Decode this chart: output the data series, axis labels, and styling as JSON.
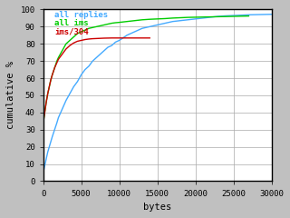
{
  "title": "",
  "xlabel": "bytes",
  "ylabel": "cumulative %",
  "xlim": [
    0,
    30000
  ],
  "ylim": [
    0,
    100
  ],
  "xticks": [
    0,
    5000,
    10000,
    15000,
    20000,
    25000,
    30000
  ],
  "yticks": [
    0,
    10,
    20,
    30,
    40,
    50,
    60,
    70,
    80,
    90,
    100
  ],
  "background_color": "#c8c8c8",
  "plot_bg_color": "#ffffff",
  "grid_color": "#aaaaaa",
  "lines": [
    {
      "label": "all replies",
      "color": "#44aaff",
      "x": [
        0,
        100,
        200,
        400,
        600,
        800,
        1000,
        1200,
        1500,
        1800,
        2000,
        2500,
        3000,
        3500,
        4000,
        4500,
        5000,
        5500,
        6000,
        6500,
        7000,
        7500,
        8000,
        8500,
        9000,
        9500,
        10000,
        11000,
        12000,
        13000,
        14000,
        15000,
        16000,
        17000,
        18000,
        19000,
        20000,
        21000,
        22000,
        23000,
        24000,
        25000,
        26000,
        27000,
        28000,
        29000,
        30000
      ],
      "y": [
        5,
        7,
        9,
        13,
        17,
        20,
        23,
        26,
        30,
        34,
        37,
        42,
        47,
        51,
        55,
        58,
        62,
        65,
        67,
        70,
        72,
        74,
        76,
        78,
        79,
        81,
        82,
        85,
        87,
        89,
        90,
        91,
        92,
        93,
        93.5,
        94,
        94.5,
        95,
        95.5,
        96,
        96.3,
        96.5,
        96.7,
        96.9,
        97,
        97.1,
        97.2
      ]
    },
    {
      "label": "all ims",
      "color": "#00cc00",
      "x": [
        0,
        100,
        200,
        400,
        600,
        800,
        1000,
        1200,
        1500,
        1800,
        2000,
        2500,
        3000,
        3500,
        4000,
        4500,
        5000,
        5500,
        6000,
        6500,
        7000,
        7500,
        8000,
        8500,
        9000,
        9500,
        10000,
        11000,
        12000,
        13000,
        14000,
        15000,
        16000,
        17000,
        18000,
        19000,
        20000,
        21000,
        22000,
        23000,
        24000,
        25000,
        26000,
        27000
      ],
      "y": [
        33,
        37,
        40,
        46,
        51,
        55,
        59,
        62,
        66,
        70,
        72,
        76,
        80,
        82,
        84,
        86,
        87,
        88,
        89,
        89.5,
        90,
        90.5,
        91,
        91.5,
        92,
        92.3,
        92.5,
        93,
        93.5,
        94,
        94.3,
        94.5,
        94.7,
        95,
        95.2,
        95.4,
        95.5,
        95.6,
        95.7,
        95.8,
        95.9,
        96,
        96.1,
        96.2
      ]
    },
    {
      "label": "ims/304",
      "color": "#cc0000",
      "x": [
        0,
        100,
        200,
        400,
        600,
        800,
        1000,
        1200,
        1500,
        1800,
        2000,
        2500,
        3000,
        3500,
        4000,
        4500,
        5000,
        5500,
        6000,
        6500,
        7000,
        7500,
        8000,
        8500,
        9000,
        9500,
        10000,
        11000,
        12000,
        13000,
        14000
      ],
      "y": [
        33,
        37,
        40,
        46,
        51,
        55,
        59,
        62,
        66,
        69,
        71,
        74,
        77,
        79,
        80.5,
        81.5,
        82,
        82.5,
        82.8,
        83,
        83.1,
        83.2,
        83.3,
        83.35,
        83.4,
        83.4,
        83.4,
        83.4,
        83.4,
        83.4,
        83.4
      ]
    }
  ],
  "legend": {
    "labels": [
      "all replies",
      "all ims",
      "ims/304"
    ],
    "colors": [
      "#44aaff",
      "#00cc00",
      "#cc0000"
    ],
    "x_data": 1500,
    "y_data": [
      97,
      92,
      87
    ]
  },
  "font_family": "monospace",
  "tick_fontsize": 6.5,
  "label_fontsize": 7.5,
  "legend_fontsize": 6.5,
  "outer_bg": "#c0c0c0",
  "border_color": "#000000"
}
